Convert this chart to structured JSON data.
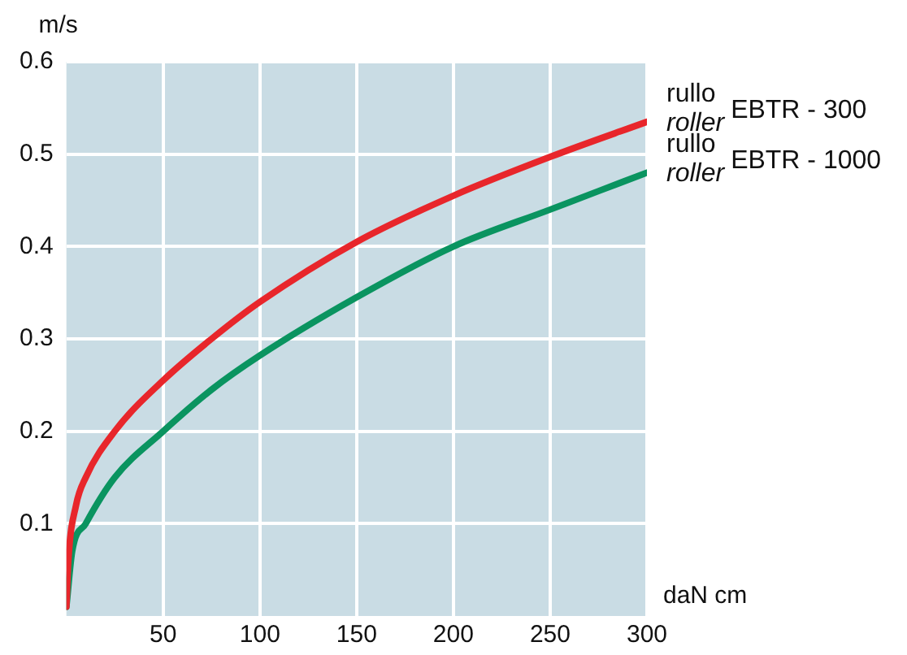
{
  "chart_data": {
    "type": "line",
    "xlabel": "daN cm",
    "ylabel": "m/s",
    "grid": true,
    "legend": false,
    "marker": "none",
    "line_style": "solid",
    "xlim": [
      0,
      300
    ],
    "xticks": [
      50,
      100,
      150,
      200,
      250,
      300
    ],
    "ylim": [
      0,
      0.6
    ],
    "yticks": [
      0.1,
      0.2,
      0.3,
      0.4,
      0.5,
      0.6
    ],
    "series": [
      {
        "name": "rullo roller EBTR - 300",
        "color": "#e8262b",
        "x": [
          0,
          1,
          5,
          10,
          25,
          50,
          75,
          100,
          150,
          200,
          250,
          300
        ],
        "values": [
          0.01,
          0.06,
          0.12,
          0.15,
          0.2,
          0.255,
          0.3,
          0.34,
          0.405,
          0.455,
          0.497,
          0.535
        ]
      },
      {
        "name": "rullo roller EBTR - 1000",
        "color": "#0a9460",
        "x": [
          0,
          3,
          10,
          25,
          50,
          75,
          100,
          150,
          200,
          250,
          300
        ],
        "values": [
          0.01,
          0.07,
          0.1,
          0.15,
          0.2,
          0.245,
          0.282,
          0.345,
          0.4,
          0.44,
          0.48
        ]
      }
    ]
  }
}
